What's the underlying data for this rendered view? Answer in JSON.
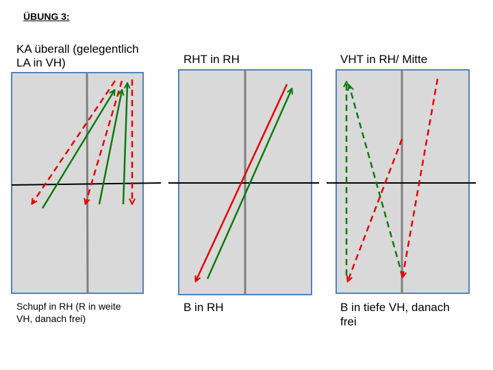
{
  "title": "ÜBUNG 3:",
  "colors": {
    "table_fill": "#d9d9d9",
    "table_border": "#4f81bd",
    "net": "#000000",
    "center_line": "#7f7f7f",
    "red": "#e60000",
    "green": "#0a7a0a"
  },
  "panels": [
    {
      "label": "KA überall (gelegentlich\nLA in VH)",
      "caption": "Schupf in RH (R in weite\nVH, danach frei)"
    },
    {
      "label": "RHT in RH",
      "caption": "B in RH"
    },
    {
      "label": "VHT in RH/ Mitte",
      "caption": "B in tiefe VH, danach\nfrei"
    }
  ]
}
